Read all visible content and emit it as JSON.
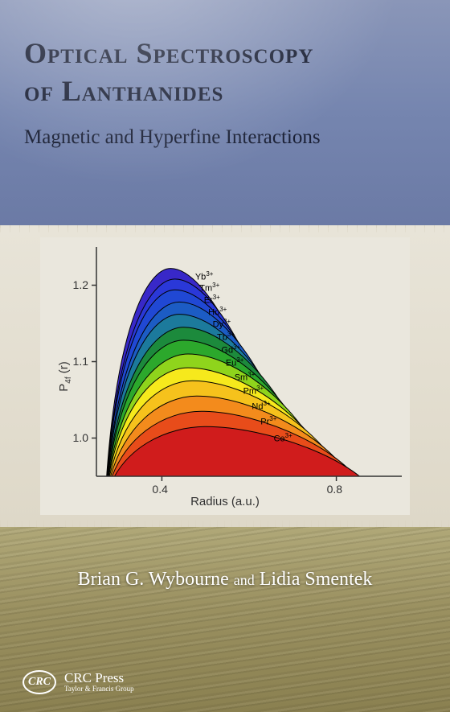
{
  "title": {
    "line1": "Optical Spectroscopy",
    "line2": "of Lanthanides",
    "subtitle": "Magnetic and Hyperfine Interactions",
    "title_color": "#1a2035",
    "title_fontsize": 36,
    "subtitle_fontsize": 25
  },
  "authors": {
    "author1": "Brian G. Wybourne",
    "conjunction": "and",
    "author2": "Lidia Smentek",
    "color": "#ffffff",
    "fontsize": 24
  },
  "publisher": {
    "logo_text": "CRC",
    "name": "CRC Press",
    "subline": "Taylor & Francis Group"
  },
  "sections": {
    "top_bg_start": "#8a96b8",
    "top_bg_end": "#6b7aa5",
    "chart_bg": "#eae7dd",
    "bottom_bg_start": "#b0a878",
    "bottom_bg_end": "#8a8050"
  },
  "chart": {
    "type": "filled-contour-series",
    "ylabel": "P₄f (r)",
    "xlabel": "Radius (a.u.)",
    "label_fontsize": 15,
    "xlim": [
      0.25,
      0.95
    ],
    "ylim": [
      0.95,
      1.25
    ],
    "xticks": [
      0.4,
      0.8
    ],
    "yticks": [
      1.0,
      1.1,
      1.2
    ],
    "background_color": "#eae7dd",
    "axis_color": "#333333",
    "outline_color": "#000000",
    "outline_width": 1,
    "series": [
      {
        "label": "Ce³⁺",
        "color": "#d01c1c",
        "peak_x": 0.5,
        "peak_y": 1.015,
        "right_x": 0.9,
        "left_x": 0.27,
        "label_x": 0.66,
        "label_y": 1.0
      },
      {
        "label": "Pr³⁺",
        "color": "#e84c1a",
        "peak_x": 0.49,
        "peak_y": 1.035,
        "right_x": 0.88,
        "left_x": 0.27,
        "label_x": 0.63,
        "label_y": 1.022
      },
      {
        "label": "Nd³⁺",
        "color": "#f38b1c",
        "peak_x": 0.48,
        "peak_y": 1.055,
        "right_x": 0.86,
        "left_x": 0.27,
        "label_x": 0.61,
        "label_y": 1.042
      },
      {
        "label": "Pm³⁺",
        "color": "#f6c21c",
        "peak_x": 0.47,
        "peak_y": 1.075,
        "right_x": 0.84,
        "left_x": 0.27,
        "label_x": 0.59,
        "label_y": 1.062
      },
      {
        "label": "Sm³⁺",
        "color": "#f6e91c",
        "peak_x": 0.46,
        "peak_y": 1.092,
        "right_x": 0.82,
        "left_x": 0.27,
        "label_x": 0.57,
        "label_y": 1.08
      },
      {
        "label": "Eu³⁺",
        "color": "#8fd41c",
        "peak_x": 0.46,
        "peak_y": 1.11,
        "right_x": 0.8,
        "left_x": 0.27,
        "label_x": 0.55,
        "label_y": 1.098
      },
      {
        "label": "Gd³⁺",
        "color": "#2ca82c",
        "peak_x": 0.45,
        "peak_y": 1.128,
        "right_x": 0.78,
        "left_x": 0.27,
        "label_x": 0.54,
        "label_y": 1.115
      },
      {
        "label": "Tb³⁺",
        "color": "#1c8a3c",
        "peak_x": 0.45,
        "peak_y": 1.145,
        "right_x": 0.76,
        "left_x": 0.27,
        "label_x": 0.53,
        "label_y": 1.132
      },
      {
        "label": "Dy³⁺",
        "color": "#1c7a9c",
        "peak_x": 0.44,
        "peak_y": 1.162,
        "right_x": 0.74,
        "left_x": 0.27,
        "label_x": 0.52,
        "label_y": 1.149
      },
      {
        "label": "Ho³⁺",
        "color": "#1c5cc4",
        "peak_x": 0.44,
        "peak_y": 1.178,
        "right_x": 0.72,
        "left_x": 0.27,
        "label_x": 0.51,
        "label_y": 1.165
      },
      {
        "label": "Er³⁺",
        "color": "#2048d4",
        "peak_x": 0.43,
        "peak_y": 1.194,
        "right_x": 0.7,
        "left_x": 0.27,
        "label_x": 0.5,
        "label_y": 1.181
      },
      {
        "label": "Tm³⁺",
        "color": "#2a38d8",
        "peak_x": 0.43,
        "peak_y": 1.208,
        "right_x": 0.68,
        "left_x": 0.27,
        "label_x": 0.49,
        "label_y": 1.196
      },
      {
        "label": "Yb³⁺",
        "color": "#3828c8",
        "peak_x": 0.42,
        "peak_y": 1.222,
        "right_x": 0.66,
        "left_x": 0.27,
        "label_x": 0.48,
        "label_y": 1.211
      }
    ]
  }
}
